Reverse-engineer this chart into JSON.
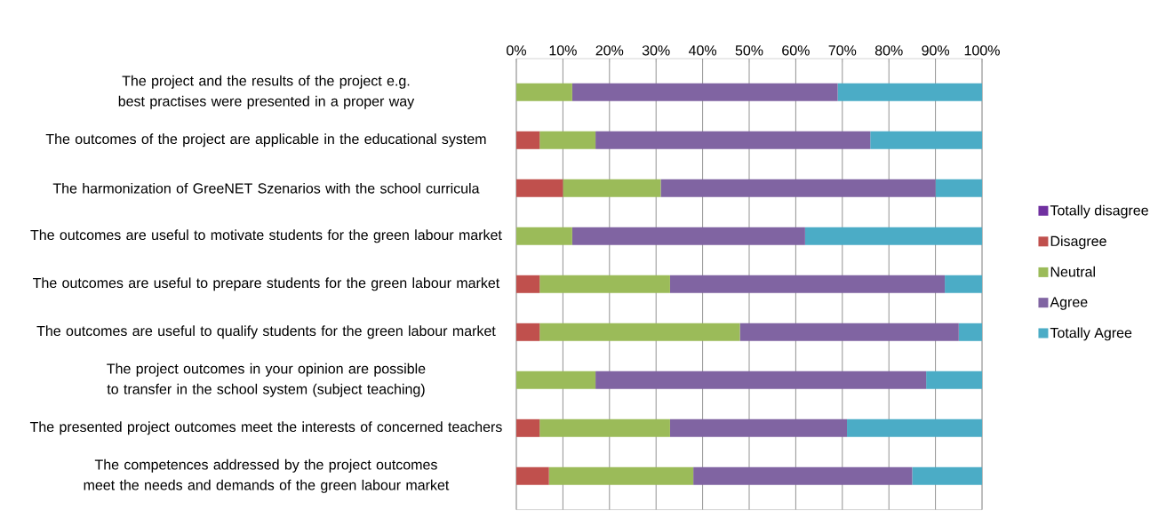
{
  "chart_data": {
    "type": "bar",
    "orientation": "horizontal",
    "stacked": true,
    "categories": [
      "The project and the results of the project e.g. best practises were presented in a proper way",
      "The outcomes of the project are applicable in the educational system",
      "The harmonization of GreeNET Szenarios with the school curricula",
      "The outcomes are useful to motivate students for the green labour market",
      "The outcomes are useful to prepare students for the green labour market",
      "The outcomes are useful to qualify students for the green labour market",
      "The project outcomes in your opinion are possible to transfer in the school system (subject teaching)",
      "The presented project outcomes meet the interests of concerned teachers",
      "The competences addressed by the project outcomes meet the needs and demands of the green labour market"
    ],
    "series": [
      {
        "name": "Totally disagree",
        "color": "#7030a0",
        "values": [
          0,
          0,
          0,
          0,
          0,
          0,
          0,
          0,
          0
        ]
      },
      {
        "name": "Disagree",
        "color": "#c0504d",
        "values": [
          0,
          5,
          10,
          0,
          5,
          5,
          0,
          5,
          7
        ]
      },
      {
        "name": "Neutral",
        "color": "#9bbb59",
        "values": [
          12,
          12,
          21,
          12,
          28,
          43,
          17,
          28,
          31
        ]
      },
      {
        "name": "Agree",
        "color": "#8064a2",
        "values": [
          57,
          59,
          59,
          50,
          59,
          47,
          71,
          38,
          47
        ]
      },
      {
        "name": "Totally Agree",
        "color": "#4bacc6",
        "values": [
          31,
          24,
          10,
          38,
          8,
          5,
          12,
          29,
          15
        ]
      }
    ],
    "xlim": [
      0,
      100
    ],
    "xticks": [
      {
        "value": 0,
        "label": "0%"
      },
      {
        "value": 10,
        "label": "10%"
      },
      {
        "value": 20,
        "label": "20%"
      },
      {
        "value": 30,
        "label": "30%"
      },
      {
        "value": 40,
        "label": "40%"
      },
      {
        "value": 50,
        "label": "50%"
      },
      {
        "value": 60,
        "label": "60%"
      },
      {
        "value": 70,
        "label": "70%"
      },
      {
        "value": 80,
        "label": "80%"
      },
      {
        "value": 90,
        "label": "90%"
      },
      {
        "value": 100,
        "label": "100%"
      }
    ],
    "grid": "x",
    "legend": "right"
  }
}
